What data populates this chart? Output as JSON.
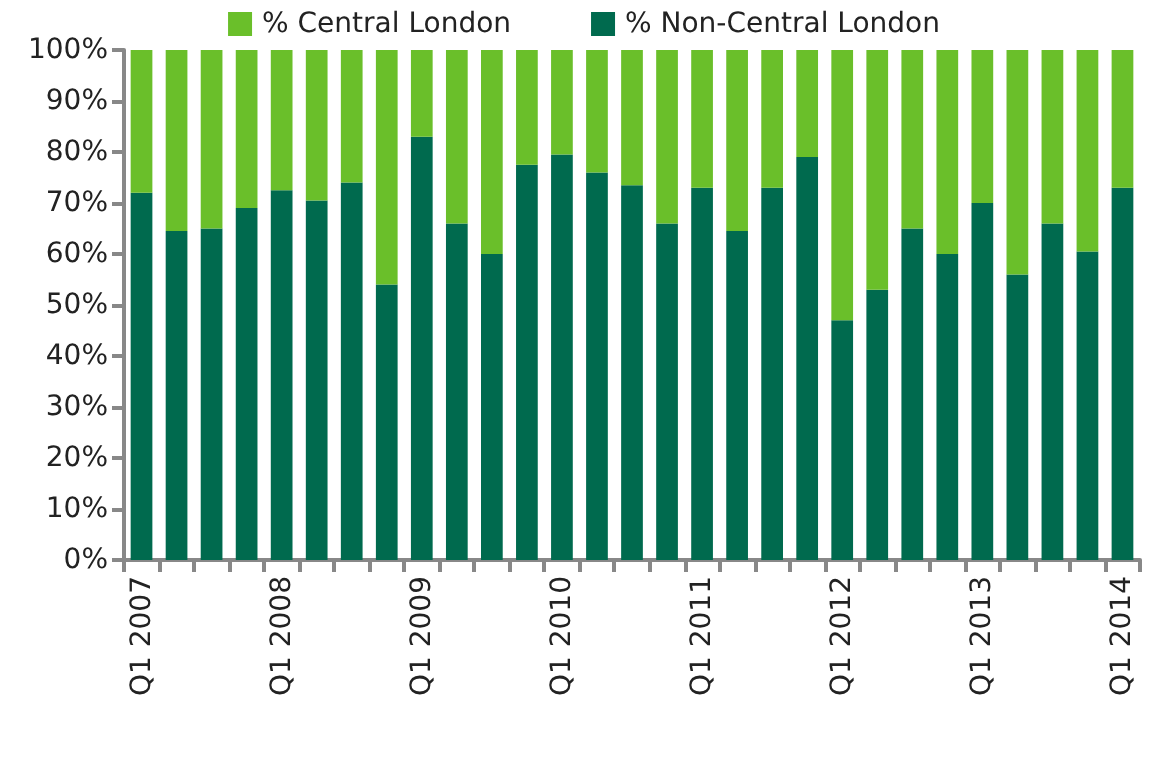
{
  "chart_data": {
    "type": "bar",
    "stacked": true,
    "legend": "top",
    "grid": false,
    "categories": [
      "Q1 2007",
      null,
      null,
      null,
      "Q1 2008",
      null,
      null,
      null,
      "Q1 2009",
      null,
      null,
      null,
      "Q1 2010",
      null,
      null,
      null,
      "Q1 2011",
      null,
      null,
      null,
      "Q1 2012",
      null,
      null,
      null,
      "Q1 2013",
      null,
      null,
      null,
      "Q1 2014"
    ],
    "series": [
      {
        "name": "% Non-Central London",
        "color": "#006a4e",
        "values": [
          72,
          64.5,
          65,
          69,
          72.5,
          70.5,
          74,
          54,
          83,
          66,
          60,
          77.5,
          79.5,
          76,
          73.5,
          66,
          73,
          64.5,
          73,
          79,
          47,
          53,
          65,
          60,
          70,
          56,
          66,
          60.5,
          73
        ]
      },
      {
        "name": "% Central London",
        "color": "#6abf2a",
        "values": [
          28,
          35.5,
          35,
          31,
          27.5,
          29.5,
          26,
          46,
          17,
          34,
          40,
          22.5,
          20.5,
          24,
          26.5,
          34,
          27,
          35.5,
          27,
          21,
          53,
          47,
          35,
          40,
          30,
          44,
          34,
          39.5,
          27
        ]
      }
    ],
    "ylim": [
      0,
      100
    ],
    "yticks": [
      {
        "value": 0,
        "label": "0%"
      },
      {
        "value": 10,
        "label": "10%"
      },
      {
        "value": 20,
        "label": "20%"
      },
      {
        "value": 30,
        "label": "30%"
      },
      {
        "value": 40,
        "label": "40%"
      },
      {
        "value": 50,
        "label": "50%"
      },
      {
        "value": 60,
        "label": "60%"
      },
      {
        "value": 70,
        "label": "70%"
      },
      {
        "value": 80,
        "label": "80%"
      },
      {
        "value": 90,
        "label": "90%"
      },
      {
        "value": 100,
        "label": "100%"
      }
    ]
  }
}
